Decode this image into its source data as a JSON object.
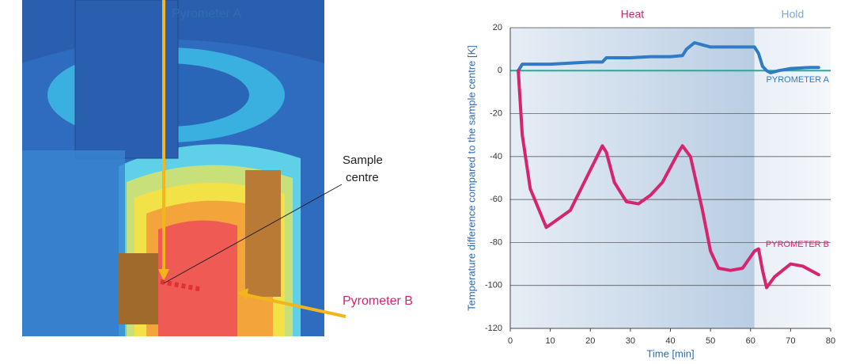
{
  "chart_data": {
    "type": "line",
    "x_label": "Time [min]",
    "y_label": "Temperature difference compared to the sample centre [K]",
    "xlim": [
      0,
      80
    ],
    "xticks": [
      0,
      10,
      20,
      30,
      40,
      50,
      60,
      70,
      80
    ],
    "ylim": [
      -120,
      20
    ],
    "yticks": [
      -120,
      -100,
      -80,
      -60,
      -40,
      -20,
      0,
      20
    ],
    "grid": true,
    "regions": [
      {
        "label": "Heat",
        "x": [
          0,
          61
        ],
        "color": "#d6246e"
      },
      {
        "label": "Hold",
        "x": [
          61,
          80
        ],
        "color": "#7fa8d2"
      }
    ],
    "series": [
      {
        "name": "PYROMETER A",
        "color": "#2f7bc6",
        "x": [
          2,
          3,
          5,
          10,
          15,
          20,
          23,
          24,
          30,
          35,
          40,
          43,
          44,
          46,
          48,
          50,
          55,
          60,
          61,
          62,
          63,
          64,
          65,
          67,
          70,
          75,
          77
        ],
        "values": [
          0,
          3,
          3,
          3,
          3.5,
          4,
          4,
          6,
          6,
          6.5,
          6.5,
          7,
          10,
          13,
          12,
          11,
          11,
          11,
          11,
          8,
          2,
          0,
          -1,
          0,
          1,
          1.5,
          1.5
        ]
      },
      {
        "name": "PYROMETER B",
        "color": "#d6246e",
        "x": [
          2,
          3,
          5,
          9,
          12,
          15,
          19,
          23,
          24,
          26,
          29,
          32,
          35,
          38,
          42,
          43,
          45,
          48,
          50,
          52,
          55,
          58,
          61,
          62,
          63,
          64,
          66,
          70,
          73,
          77
        ],
        "values": [
          0,
          -30,
          -55,
          -73,
          -69,
          -65,
          -50,
          -35,
          -38,
          -52,
          -61,
          -62,
          -58,
          -52,
          -38,
          -35,
          -40,
          -65,
          -84,
          -92,
          -93,
          -92,
          -84,
          -83,
          -93,
          -101,
          -96,
          -90,
          -91,
          -95
        ]
      }
    ]
  },
  "diagram": {
    "pyrometer_a": "Pyrometer A",
    "pyrometer_b": "Pyrometer B",
    "sample_centre": [
      "Sample",
      "centre"
    ]
  }
}
